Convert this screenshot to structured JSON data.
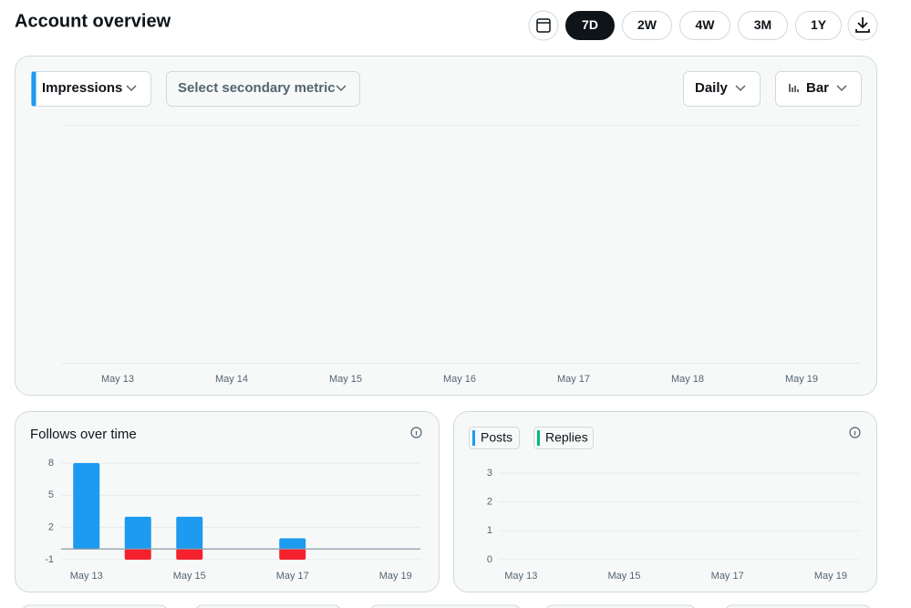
{
  "header": {
    "title": "Account overview",
    "ranges": [
      "7D",
      "2W",
      "4W",
      "3M",
      "1Y"
    ],
    "active_range": "7D"
  },
  "controls": {
    "primary_metric": "Impressions",
    "secondary_metric": "Select secondary metric",
    "interval": "Daily",
    "chart_style": "Bar"
  },
  "chart_data": [
    {
      "type": "bar",
      "categories": [
        "May 13",
        "May 14",
        "May 15",
        "May 16",
        "May 17",
        "May 18",
        "May 19"
      ]
    },
    {
      "type": "bar",
      "stacked": true,
      "title": "Follows over time",
      "categories": [
        "May 13",
        null,
        "May 15",
        null,
        "May 17",
        null,
        "May 19"
      ],
      "series": [
        {
          "color": "#1d9bf0",
          "values": [
            8,
            3,
            3,
            0,
            1,
            0,
            0
          ]
        },
        {
          "color": "#f4212e",
          "values": [
            0,
            -1,
            -1,
            0,
            -1,
            0,
            0
          ]
        }
      ],
      "ylim": [
        -1,
        8
      ],
      "yticks": [
        8,
        5,
        2,
        -1
      ],
      "grid": true
    },
    {
      "type": "bar",
      "categories": [
        "May 13",
        null,
        "May 15",
        null,
        "May 17",
        null,
        "May 19"
      ],
      "series": [
        {
          "name": "Posts",
          "color": "#1d9bf0",
          "values": [
            0,
            0,
            0,
            0,
            0,
            0,
            0
          ]
        },
        {
          "name": "Replies",
          "color": "#00ba7c",
          "values": [
            0,
            0,
            0,
            0,
            0,
            0,
            0
          ]
        }
      ],
      "ylim": [
        0,
        3
      ],
      "yticks": [
        0,
        1,
        2,
        3
      ],
      "grid": true
    }
  ]
}
